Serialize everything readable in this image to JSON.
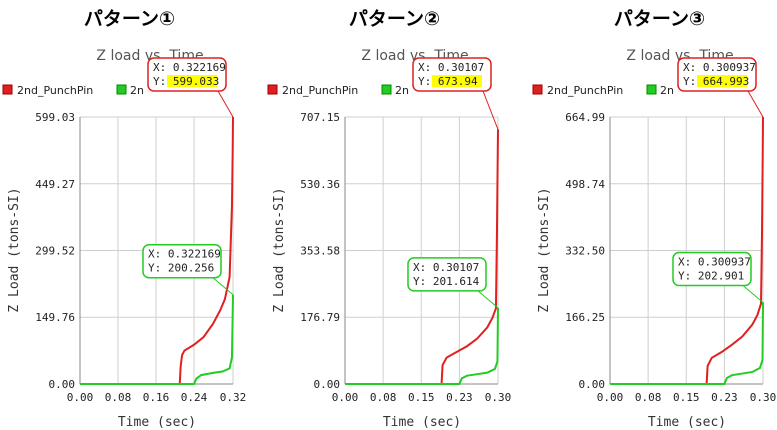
{
  "colors": {
    "red": "#e02020",
    "green": "#22cc22",
    "grid": "#cfcfcf",
    "highlight": "#ffff00"
  },
  "panels": [
    {
      "heading": "パターン①",
      "chart_data": {
        "type": "line",
        "title": "Z load vs. Time",
        "xlabel": "Time (sec)",
        "ylabel": "Z Load (tons-SI)",
        "xlim": [
          0,
          0.322169
        ],
        "ylim": [
          0,
          599.03
        ],
        "x_ticks": [
          "0.00",
          "0.08",
          "0.16",
          "0.24",
          "0.32"
        ],
        "x_tick_values": [
          0,
          0.08,
          0.16,
          0.24,
          0.322169
        ],
        "y_ticks": [
          "0.00",
          "149.76",
          "299.52",
          "449.27",
          "599.03"
        ],
        "y_tick_values": [
          0,
          149.76,
          299.52,
          449.27,
          599.03
        ],
        "legend": [
          "2nd_PunchPin",
          "2n"
        ],
        "series": [
          {
            "name": "2nd_PunchPin",
            "color": "red",
            "points": [
              [
                0,
                0
              ],
              [
                0.21,
                0
              ],
              [
                0.212,
                40
              ],
              [
                0.215,
                65
              ],
              [
                0.22,
                75
              ],
              [
                0.24,
                88
              ],
              [
                0.26,
                105
              ],
              [
                0.28,
                135
              ],
              [
                0.295,
                165
              ],
              [
                0.305,
                190
              ],
              [
                0.315,
                240
              ],
              [
                0.32,
                400
              ],
              [
                0.3215,
                520
              ],
              [
                0.322169,
                599.033
              ]
            ]
          },
          {
            "name": "2n",
            "color": "green",
            "points": [
              [
                0,
                0
              ],
              [
                0.24,
                0
              ],
              [
                0.245,
                12
              ],
              [
                0.255,
                20
              ],
              [
                0.28,
                25
              ],
              [
                0.3,
                28
              ],
              [
                0.315,
                35
              ],
              [
                0.32,
                60
              ],
              [
                0.3222,
                200.256
              ]
            ]
          }
        ],
        "tooltips": [
          {
            "x_text": "X: 0.322169",
            "y_text": "Y: 599.033",
            "at": [
              0.322169,
              599.033
            ],
            "color": "red",
            "highlight": true
          },
          {
            "x_text": "X: 0.322169",
            "y_text": "Y: 200.256",
            "at": [
              0.322169,
              200.256
            ],
            "color": "green",
            "highlight": false
          }
        ]
      }
    },
    {
      "heading": "パターン②",
      "chart_data": {
        "type": "line",
        "title": "Z load vs. Time",
        "xlabel": "Time (sec)",
        "ylabel": "Z Load (tons-SI)",
        "xlim": [
          0,
          0.30107
        ],
        "ylim": [
          0,
          707.15
        ],
        "x_ticks": [
          "0.00",
          "0.08",
          "0.15",
          "0.23",
          "0.30"
        ],
        "x_tick_values": [
          0,
          0.075,
          0.15,
          0.225,
          0.30107
        ],
        "y_ticks": [
          "0.00",
          "176.79",
          "353.58",
          "530.36",
          "707.15"
        ],
        "y_tick_values": [
          0,
          176.79,
          353.58,
          530.36,
          707.15
        ],
        "legend": [
          "2nd_PunchPin",
          "2n"
        ],
        "series": [
          {
            "name": "2nd_PunchPin",
            "color": "red",
            "points": [
              [
                0,
                0
              ],
              [
                0.19,
                0
              ],
              [
                0.192,
                50
              ],
              [
                0.2,
                70
              ],
              [
                0.22,
                85
              ],
              [
                0.24,
                100
              ],
              [
                0.26,
                120
              ],
              [
                0.28,
                150
              ],
              [
                0.29,
                175
              ],
              [
                0.297,
                200
              ],
              [
                0.299,
                400
              ],
              [
                0.3005,
                600
              ],
              [
                0.30107,
                673.94
              ]
            ]
          },
          {
            "name": "2n",
            "color": "green",
            "points": [
              [
                0,
                0
              ],
              [
                0.225,
                0
              ],
              [
                0.23,
                15
              ],
              [
                0.24,
                22
              ],
              [
                0.26,
                26
              ],
              [
                0.28,
                30
              ],
              [
                0.295,
                40
              ],
              [
                0.3,
                60
              ],
              [
                0.30107,
                201.614
              ]
            ]
          }
        ],
        "tooltips": [
          {
            "x_text": "X: 0.30107",
            "y_text": "Y: 673.94",
            "at": [
              0.30107,
              673.94
            ],
            "color": "red",
            "highlight": true
          },
          {
            "x_text": "X: 0.30107",
            "y_text": "Y: 201.614",
            "at": [
              0.30107,
              201.614
            ],
            "color": "green",
            "highlight": false
          }
        ]
      }
    },
    {
      "heading": "パターン③",
      "chart_data": {
        "type": "line",
        "title": "Z load vs. Time",
        "xlabel": "Time (sec)",
        "ylabel": "Z Load (tons-SI)",
        "xlim": [
          0,
          0.300937
        ],
        "ylim": [
          0,
          664.99
        ],
        "x_ticks": [
          "0.00",
          "0.08",
          "0.15",
          "0.23",
          "0.30"
        ],
        "x_tick_values": [
          0,
          0.075,
          0.15,
          0.225,
          0.300937
        ],
        "y_ticks": [
          "0.00",
          "166.25",
          "332.50",
          "498.74",
          "664.99"
        ],
        "y_tick_values": [
          0,
          166.25,
          332.5,
          498.74,
          664.99
        ],
        "legend": [
          "2nd_PunchPin",
          "2n"
        ],
        "series": [
          {
            "name": "2nd_PunchPin",
            "color": "red",
            "points": [
              [
                0,
                0
              ],
              [
                0.19,
                0
              ],
              [
                0.192,
                45
              ],
              [
                0.2,
                65
              ],
              [
                0.22,
                80
              ],
              [
                0.24,
                98
              ],
              [
                0.26,
                118
              ],
              [
                0.28,
                148
              ],
              [
                0.29,
                172
              ],
              [
                0.297,
                200
              ],
              [
                0.299,
                380
              ],
              [
                0.3003,
                560
              ],
              [
                0.300937,
                664.993
              ]
            ]
          },
          {
            "name": "2n",
            "color": "green",
            "points": [
              [
                0,
                0
              ],
              [
                0.225,
                0
              ],
              [
                0.23,
                15
              ],
              [
                0.24,
                22
              ],
              [
                0.26,
                26
              ],
              [
                0.28,
                30
              ],
              [
                0.295,
                40
              ],
              [
                0.3,
                60
              ],
              [
                0.300937,
                202.901
              ]
            ]
          }
        ],
        "tooltips": [
          {
            "x_text": "X: 0.300937",
            "y_text": "Y: 664.993",
            "at": [
              0.300937,
              664.993
            ],
            "color": "red",
            "highlight": true
          },
          {
            "x_text": "X: 0.300937",
            "y_text": "Y: 202.901",
            "at": [
              0.300937,
              202.901
            ],
            "color": "green",
            "highlight": false
          }
        ]
      }
    }
  ]
}
